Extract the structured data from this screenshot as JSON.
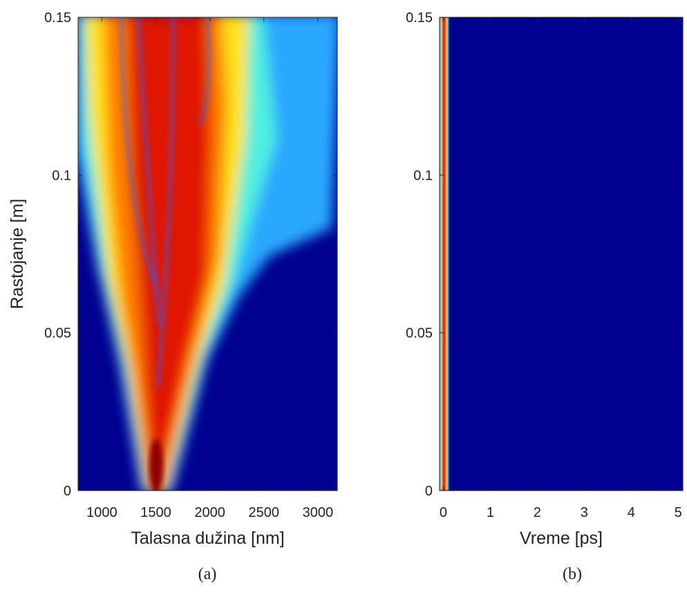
{
  "chart_data": [
    {
      "type": "heatmap",
      "xlabel": "Talasna dužina [nm]",
      "ylabel": "Rastojanje [m]",
      "xlim": [
        780,
        3180
      ],
      "ylim": [
        0,
        0.15
      ],
      "xticks": [
        1000,
        1500,
        2000,
        2500,
        3000
      ],
      "yticks": [
        0,
        0.05,
        0.1,
        0.15
      ],
      "caption": "(a)"
    },
    {
      "type": "heatmap",
      "xlabel": "Vreme [ps]",
      "xlim": [
        -0.08,
        5.1
      ],
      "ylim": [
        0,
        0.15
      ],
      "xticks": [
        0,
        1,
        2,
        3,
        4,
        5
      ],
      "yticks": [
        0,
        0.05,
        0.1,
        0.15
      ],
      "caption": "(b)"
    }
  ]
}
